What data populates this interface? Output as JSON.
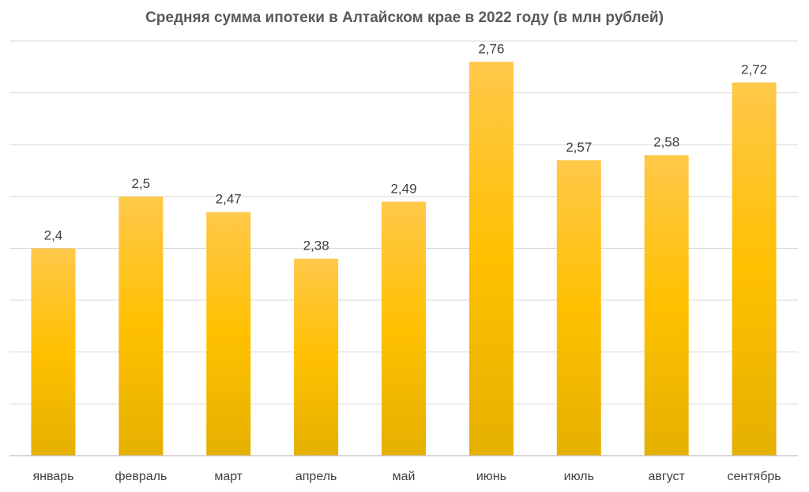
{
  "chart_data": {
    "type": "bar",
    "title": "Средняя сумма ипотеки в Алтайском крае в 2022 году (в млн рублей)",
    "xlabel": "",
    "ylabel": "",
    "categories": [
      "январь",
      "февраль",
      "март",
      "апрель",
      "май",
      "июнь",
      "июль",
      "август",
      "сентябрь"
    ],
    "values": [
      2.4,
      2.5,
      2.47,
      2.38,
      2.49,
      2.76,
      2.57,
      2.58,
      2.72
    ],
    "data_labels": [
      "2,4",
      "2,5",
      "2,47",
      "2,38",
      "2,49",
      "2,76",
      "2,57",
      "2,58",
      "2,72"
    ],
    "ylim": [
      2.0,
      2.8
    ],
    "ytick_step": 0.1,
    "y_axis_labels_visible": false,
    "grid": true,
    "legend": "none",
    "bar_color_top": "#FFC84A",
    "bar_color_mid": "#FFC000",
    "bar_color_bottom": "#E5B000"
  }
}
